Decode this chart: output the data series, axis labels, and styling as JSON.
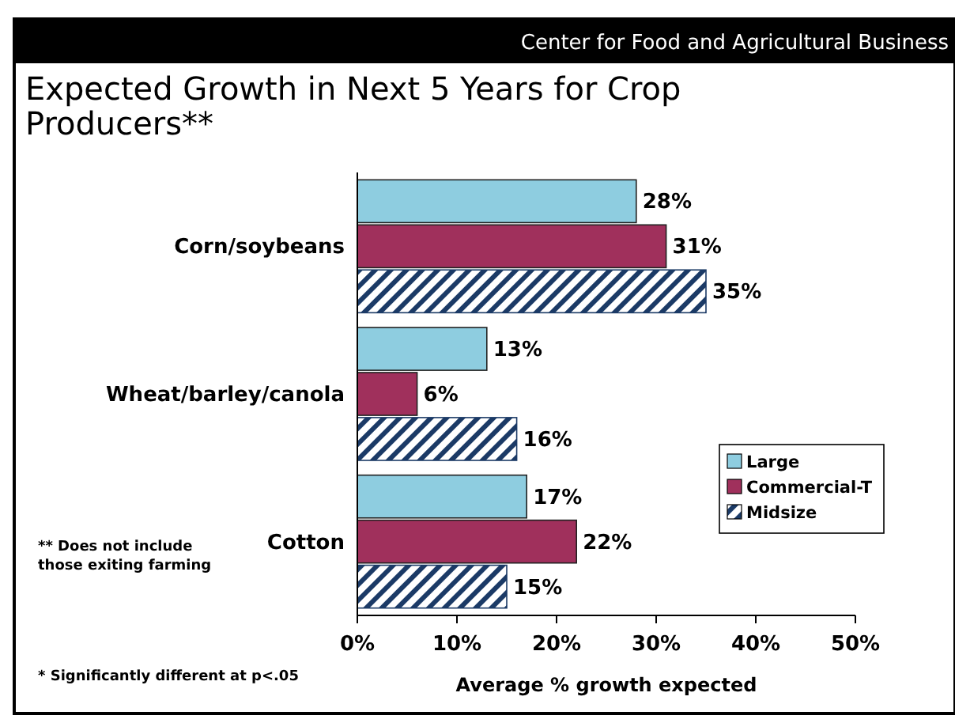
{
  "chart_data": {
    "type": "bar",
    "orientation": "horizontal",
    "title": "Expected Growth in Next 5 Years for Crop Producers**",
    "xlabel": "Average % growth expected",
    "categories": [
      "Corn/soybeans",
      "Wheat/barley/canola",
      "Cotton"
    ],
    "series": [
      {
        "name": "Large",
        "color": "#8ecde0",
        "values": [
          28,
          13,
          17
        ],
        "value_labels": [
          "28%",
          "13%",
          "17%"
        ]
      },
      {
        "name": "Commercial-T",
        "color": "#a0305c",
        "values": [
          31,
          6,
          22
        ],
        "value_labels": [
          "31%",
          "6%",
          "22%"
        ]
      },
      {
        "name": "Midsize",
        "color": "#1b3a66",
        "values": [
          35,
          16,
          15
        ],
        "value_labels": [
          "35%",
          "16%",
          "15%"
        ]
      }
    ],
    "xlim": [
      0,
      50
    ],
    "xticks": [
      {
        "value": 0,
        "label": "0%"
      },
      {
        "value": 10,
        "label": "10%"
      },
      {
        "value": 20,
        "label": "20%"
      },
      {
        "value": 30,
        "label": "30%"
      },
      {
        "value": 40,
        "label": "40%"
      },
      {
        "value": 50,
        "label": "50%"
      }
    ],
    "grid": false,
    "legend": "right",
    "annotations": [
      "Center for Food and Agricultural Business",
      "** Does not include those exiting farming",
      "* Significantly different at p<.05"
    ]
  }
}
